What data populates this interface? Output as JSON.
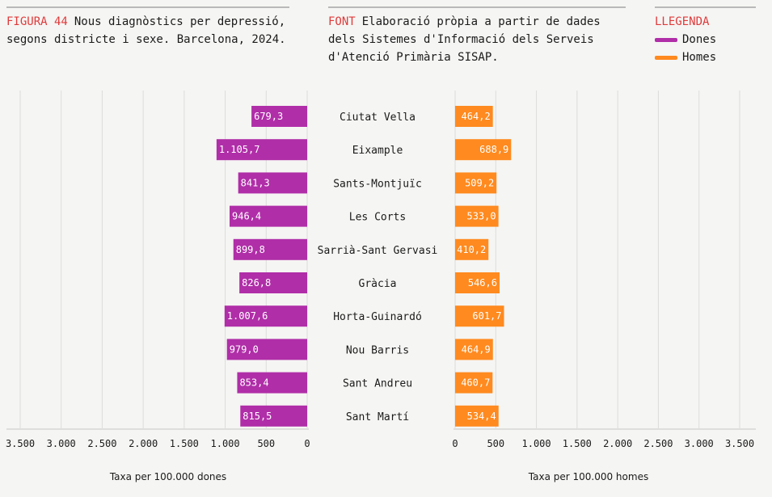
{
  "header": {
    "figure_tag": "FIGURA 44",
    "title": "Nous diagnòstics per depressió, segons districte i sexe. Barcelona, 2024.",
    "source_tag": "FONT",
    "source": "Elaboració pròpia a partir de dades dels Sistemes d'Informació dels Serveis d'Atenció Primària SISAP.",
    "legend_tag": "LLEGENDA"
  },
  "colors": {
    "women": "#b02ea8",
    "men": "#ff8a1f",
    "tag": "#e03a3a"
  },
  "chart_data": {
    "type": "bar",
    "categories": [
      "Ciutat Vella",
      "Eixample",
      "Sants-Montjuïc",
      "Les Corts",
      "Sarrià-Sant Gervasi",
      "Gràcia",
      "Horta-Guinardó",
      "Nou Barris",
      "Sant Andreu",
      "Sant Martí"
    ],
    "series": [
      {
        "name": "Dones",
        "values": [
          679.3,
          1105.7,
          841.3,
          946.4,
          899.8,
          826.8,
          1007.6,
          979.0,
          853.4,
          815.5
        ],
        "labels": [
          "679,3",
          "1.105,7",
          "841,3",
          "946,4",
          "899,8",
          "826,8",
          "1.007,6",
          "979,0",
          "853,4",
          "815,5"
        ]
      },
      {
        "name": "Homes",
        "values": [
          464.2,
          688.9,
          509.2,
          533.0,
          410.2,
          546.6,
          601.7,
          464.9,
          460.7,
          534.4
        ],
        "labels": [
          "464,2",
          "688,9",
          "509,2",
          "533,0",
          "410,2",
          "546,6",
          "601,7",
          "464,9",
          "460,7",
          "534,4"
        ]
      }
    ],
    "left_xlabel": "Taxa per 100.000 dones",
    "right_xlabel": "Taxa per 100.000 homes",
    "xlim": [
      0,
      3500
    ],
    "ticks": [
      0,
      500,
      1000,
      1500,
      2000,
      2500,
      3000,
      3500
    ],
    "tick_labels": [
      "0",
      "500",
      "1.000",
      "1.500",
      "2.000",
      "2.500",
      "3.000",
      "3.500"
    ],
    "grid": true
  }
}
